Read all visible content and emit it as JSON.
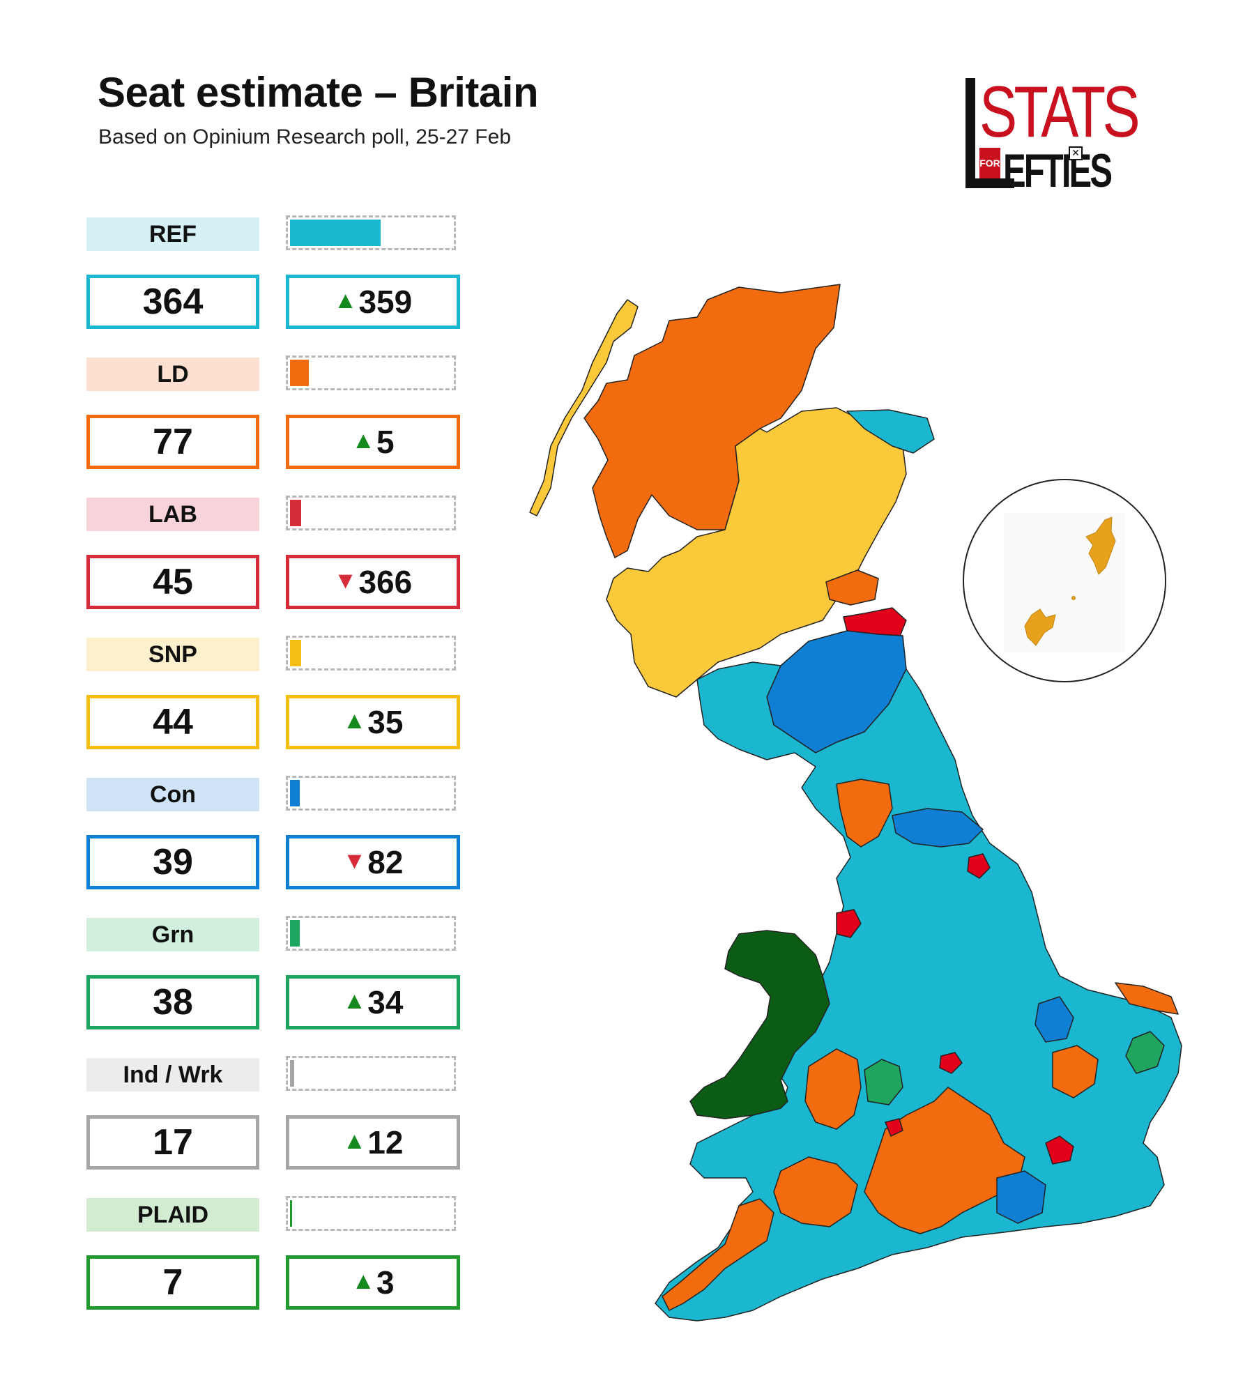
{
  "header": {
    "title": "Seat estimate – Britain",
    "subtitle": "Based on Opinium Research poll, 25-27 Feb"
  },
  "logo": {
    "top_text": "STATS",
    "small_text": "FOR",
    "bottom_text": "EFTIES"
  },
  "total_seats_scale": 650,
  "parties": [
    {
      "label": "REF",
      "seats": "364",
      "seats_value": 364,
      "change": "359",
      "direction": "up",
      "color": "#1bb6cf",
      "label_bg": "#d6f1f6"
    },
    {
      "label": "LD",
      "seats": "77",
      "seats_value": 77,
      "change": "5",
      "direction": "up",
      "color": "#f26b0f",
      "label_bg": "#fde0cf"
    },
    {
      "label": "LAB",
      "seats": "45",
      "seats_value": 45,
      "change": "366",
      "direction": "down",
      "color": "#d62b38",
      "label_bg": "#f8d3d9"
    },
    {
      "label": "SNP",
      "seats": "44",
      "seats_value": 44,
      "change": "35",
      "direction": "up",
      "color": "#f5be12",
      "label_bg": "#fdf0cd"
    },
    {
      "label": "Con",
      "seats": "39",
      "seats_value": 39,
      "change": "82",
      "direction": "down",
      "color": "#0e7fd2",
      "label_bg": "#cfe4f6"
    },
    {
      "label": "Grn",
      "seats": "38",
      "seats_value": 38,
      "change": "34",
      "direction": "up",
      "color": "#1ea55f",
      "label_bg": "#d0efdd"
    },
    {
      "label": "Ind / Wrk",
      "seats": "17",
      "seats_value": 17,
      "change": "12",
      "direction": "up",
      "color": "#a6a6a6",
      "label_bg": "#ececec"
    },
    {
      "label": "PLAID",
      "seats": "7",
      "seats_value": 7,
      "change": "3",
      "direction": "up",
      "color": "#1e9a2e",
      "label_bg": "#d2ecd2"
    }
  ],
  "map_colors": {
    "reform": "#1bb6cf",
    "libdem": "#f26b0f",
    "snp": "#fcc93a",
    "conservative": "#0e7fd2",
    "labour": "#e2001a",
    "green": "#20a55f",
    "plaid": "#0b5d16",
    "shetland": "#e8a11c"
  }
}
